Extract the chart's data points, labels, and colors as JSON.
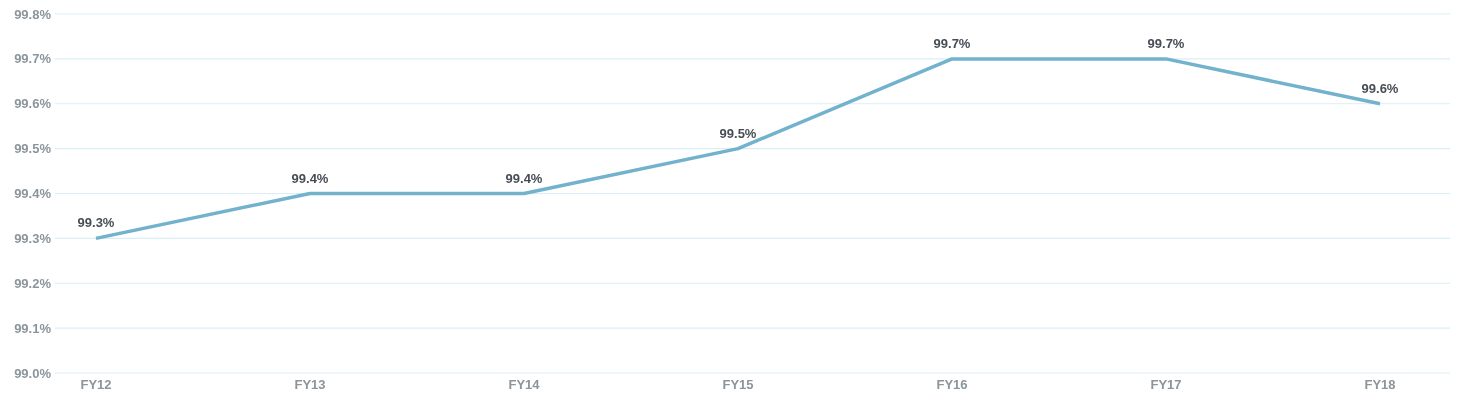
{
  "chart_data": {
    "type": "line",
    "categories": [
      "FY12",
      "FY13",
      "FY14",
      "FY15",
      "FY16",
      "FY17",
      "FY18"
    ],
    "values": [
      99.3,
      99.4,
      99.4,
      99.5,
      99.7,
      99.7,
      99.6
    ],
    "value_labels": [
      "99.3%",
      "99.4%",
      "99.4%",
      "99.5%",
      "99.7%",
      "99.7%",
      "99.6%"
    ],
    "color": "#72b2cd",
    "ylim": [
      99.0,
      99.8
    ],
    "yticks": [
      {
        "value": 99.0,
        "label": "99.0%"
      },
      {
        "value": 99.1,
        "label": "99.1%"
      },
      {
        "value": 99.2,
        "label": "99.2%"
      },
      {
        "value": 99.3,
        "label": "99.3%"
      },
      {
        "value": 99.4,
        "label": "99.4%"
      },
      {
        "value": 99.5,
        "label": "99.5%"
      },
      {
        "value": 99.6,
        "label": "99.6%"
      },
      {
        "value": 99.7,
        "label": "99.7%"
      },
      {
        "value": 99.8,
        "label": "99.8%"
      }
    ],
    "grid": "y"
  }
}
